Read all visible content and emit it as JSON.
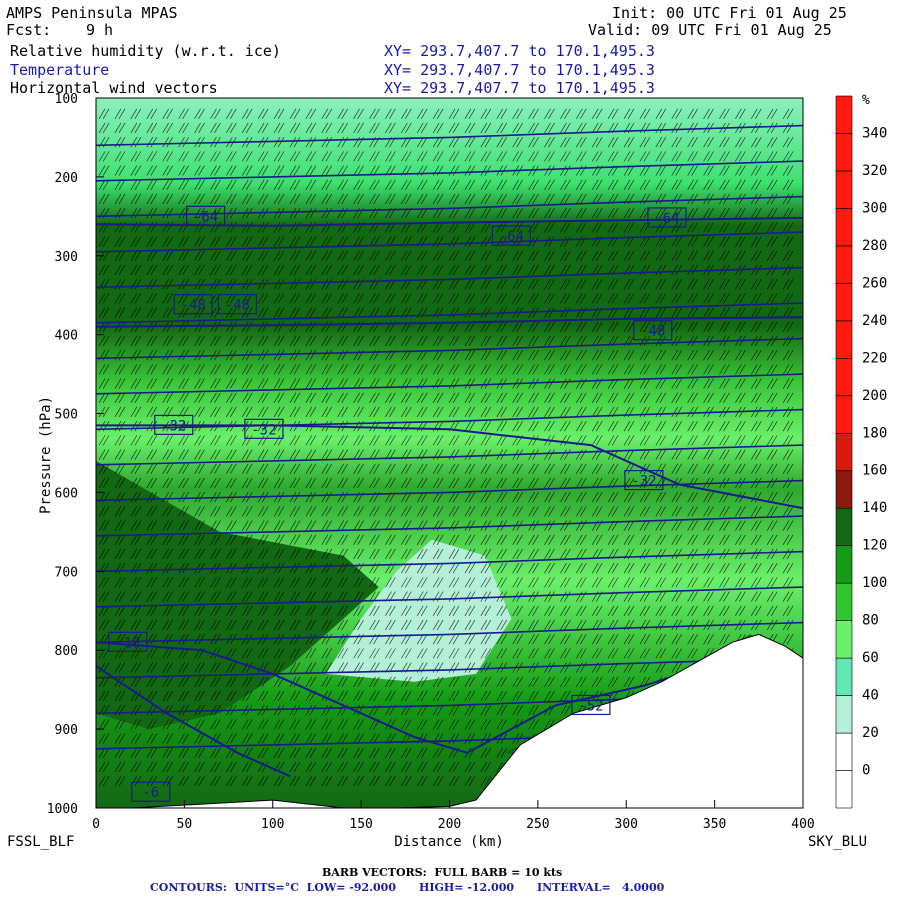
{
  "header": {
    "model": "AMPS Peninsula MPAS",
    "fcst_label": "Fcst:",
    "fcst_value": "9 h",
    "init": "Init: 00 UTC Fri 01 Aug 25",
    "valid": "Valid: 09 UTC Fri 01 Aug 25",
    "fields": [
      {
        "name": "Relative humidity (w.r.t. ice)",
        "xy": "XY= 293.7,407.7 to 170.1,495.3"
      },
      {
        "name": "Temperature",
        "xy": "XY= 293.7,407.7 to 170.1,495.3"
      },
      {
        "name": "Horizontal wind vectors",
        "xy": "XY= 293.7,407.7 to 170.1,495.3"
      }
    ]
  },
  "endpoints": {
    "left": "FSSL_BLF",
    "right": "SKY_BLU"
  },
  "footer": {
    "barb_line": "BARB VECTORS:  FULL BARB = 10 kts",
    "contour_line": "CONTOURS:  UNITS=°C  LOW= -92.000      HIGH= -12.000      INTERVAL=   4.0000"
  },
  "colors": {
    "contour": "#1a1a8c",
    "label_text": "#1a1aa6"
  },
  "chart_data": {
    "type": "heatmap",
    "xlabel": "Distance (km)",
    "ylabel": "Pressure (hPa)",
    "xlim": [
      0,
      400
    ],
    "ylim": [
      1000,
      100
    ],
    "x_ticks": [
      0,
      50,
      100,
      150,
      200,
      250,
      300,
      350,
      400
    ],
    "y_ticks": [
      100,
      200,
      300,
      400,
      500,
      600,
      700,
      800,
      900,
      1000
    ],
    "colorbar": {
      "unit": "%",
      "levels": [
        0,
        20,
        40,
        60,
        80,
        100,
        120,
        140,
        160,
        180,
        200,
        220,
        240,
        260,
        280,
        300,
        320,
        340
      ],
      "colors": [
        "#ffffff",
        "#ffffff",
        "#b4f0d8",
        "#63e8b4",
        "#6af06a",
        "#31c631",
        "#159a15",
        "#136813",
        "#8a1a10",
        "#d81a10",
        "#ff1a10",
        "#ff1a10",
        "#ff1a10",
        "#ff1a10",
        "#ff1a10",
        "#ff1a10",
        "#ff1a10",
        "#ff1a10",
        "#ff1a10"
      ]
    },
    "terrain": [
      [
        0,
        1000
      ],
      [
        20,
        1000
      ],
      [
        60,
        995
      ],
      [
        100,
        990
      ],
      [
        140,
        1000
      ],
      [
        170,
        1000
      ],
      [
        200,
        998
      ],
      [
        215,
        990
      ],
      [
        240,
        920
      ],
      [
        270,
        880
      ],
      [
        300,
        860
      ],
      [
        320,
        840
      ],
      [
        340,
        815
      ],
      [
        360,
        790
      ],
      [
        375,
        780
      ],
      [
        390,
        795
      ],
      [
        400,
        810
      ]
    ],
    "rh_regions": [
      {
        "name": "dry-middle-tongue",
        "rh": 20,
        "points": [
          [
            130,
            830
          ],
          [
            150,
            760
          ],
          [
            170,
            700
          ],
          [
            190,
            660
          ],
          [
            220,
            680
          ],
          [
            235,
            760
          ],
          [
            215,
            830
          ],
          [
            180,
            840
          ]
        ]
      },
      {
        "name": "high-ice-supersaturation-upper",
        "rh": 120,
        "points": [
          [
            28,
            280
          ],
          [
            55,
            270
          ],
          [
            95,
            285
          ],
          [
            105,
            330
          ],
          [
            95,
            380
          ],
          [
            55,
            390
          ],
          [
            28,
            370
          ],
          [
            25,
            320
          ]
        ]
      },
      {
        "name": "high-ice-supersaturation-lower",
        "rh": 120,
        "points": [
          [
            0,
            560
          ],
          [
            70,
            650
          ],
          [
            140,
            680
          ],
          [
            160,
            720
          ],
          [
            110,
            820
          ],
          [
            70,
            880
          ],
          [
            30,
            900
          ],
          [
            0,
            880
          ]
        ]
      },
      {
        "name": "high-rh-along-slope",
        "rh": 130,
        "points": [
          [
            230,
            930
          ],
          [
            280,
            880
          ],
          [
            330,
            830
          ],
          [
            370,
            780
          ],
          [
            380,
            790
          ],
          [
            340,
            830
          ],
          [
            285,
            890
          ],
          [
            240,
            935
          ]
        ]
      }
    ],
    "temperature_contours": [
      {
        "label": "-64",
        "points": [
          [
            0,
            260
          ],
          [
            100,
            262
          ],
          [
            200,
            258
          ],
          [
            300,
            255
          ],
          [
            400,
            252
          ]
        ]
      },
      {
        "label": "-48",
        "points": [
          [
            0,
            390
          ],
          [
            100,
            388
          ],
          [
            200,
            385
          ],
          [
            300,
            380
          ],
          [
            400,
            378
          ]
        ]
      },
      {
        "label": "-32",
        "points": [
          [
            0,
            515
          ],
          [
            100,
            515
          ],
          [
            200,
            520
          ],
          [
            280,
            540
          ],
          [
            330,
            590
          ],
          [
            400,
            620
          ]
        ]
      },
      {
        "label": "-18",
        "points": [
          [
            0,
            790
          ],
          [
            60,
            800
          ],
          [
            100,
            830
          ],
          [
            140,
            870
          ],
          [
            180,
            910
          ],
          [
            210,
            930
          ]
        ]
      },
      {
        "label": "-16",
        "points": [
          [
            0,
            820
          ],
          [
            40,
            880
          ],
          [
            80,
            930
          ],
          [
            110,
            960
          ]
        ]
      },
      {
        "label": "-52",
        "points": [
          [
            210,
            930
          ],
          [
            260,
            870
          ],
          [
            310,
            845
          ],
          [
            360,
            810
          ]
        ]
      }
    ],
    "contour_labels": [
      {
        "text": "-64",
        "x": 62,
        "p": 250
      },
      {
        "text": "-64",
        "x": 235,
        "p": 275
      },
      {
        "text": "-64",
        "x": 323,
        "p": 252
      },
      {
        "text": "-48",
        "x": 55,
        "p": 362
      },
      {
        "text": "-48",
        "x": 80,
        "p": 362
      },
      {
        "text": "-48",
        "x": 315,
        "p": 395
      },
      {
        "text": "-32",
        "x": 44,
        "p": 515
      },
      {
        "text": "-32",
        "x": 95,
        "p": 520
      },
      {
        "text": "-32",
        "x": 310,
        "p": 585
      },
      {
        "text": "-18",
        "x": 18,
        "p": 790
      },
      {
        "text": "-52",
        "x": 280,
        "p": 870
      },
      {
        "text": "-6",
        "x": 31,
        "p": 980
      }
    ]
  }
}
